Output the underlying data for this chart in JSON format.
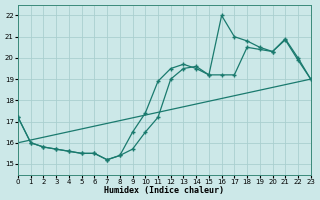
{
  "xlabel": "Humidex (Indice chaleur)",
  "bg_color": "#cce8e8",
  "grid_color": "#aacfcf",
  "line_color": "#1a7a6e",
  "xmin": 0,
  "xmax": 23,
  "ymin": 14.5,
  "ymax": 22.5,
  "yticks": [
    15,
    16,
    17,
    18,
    19,
    20,
    21,
    22
  ],
  "xticks": [
    0,
    1,
    2,
    3,
    4,
    5,
    6,
    7,
    8,
    9,
    10,
    11,
    12,
    13,
    14,
    15,
    16,
    17,
    18,
    19,
    20,
    21,
    22,
    23
  ],
  "line_trend": {
    "x": [
      0,
      23
    ],
    "y": [
      16.0,
      19.0
    ]
  },
  "line_smooth": {
    "x": [
      0,
      1,
      2,
      3,
      4,
      5,
      6,
      7,
      8,
      9,
      10,
      11,
      12,
      13,
      14,
      15,
      16,
      17,
      18,
      19,
      20,
      21,
      22,
      23
    ],
    "y": [
      17.2,
      16.0,
      15.8,
      15.7,
      15.6,
      15.5,
      15.5,
      15.2,
      15.4,
      15.7,
      16.5,
      17.2,
      19.0,
      19.5,
      19.6,
      19.2,
      19.2,
      19.2,
      20.5,
      20.4,
      20.3,
      20.85,
      19.9,
      19.0
    ]
  },
  "line_spike": {
    "x": [
      0,
      1,
      2,
      3,
      4,
      5,
      6,
      7,
      8,
      9,
      10,
      11,
      12,
      13,
      14,
      15,
      16,
      17,
      18,
      19,
      20,
      21,
      22,
      23
    ],
    "y": [
      17.2,
      16.0,
      15.8,
      15.7,
      15.6,
      15.5,
      15.5,
      15.2,
      15.4,
      16.5,
      17.4,
      18.9,
      19.5,
      19.7,
      19.5,
      19.2,
      22.0,
      21.0,
      20.8,
      20.5,
      20.3,
      20.9,
      20.0,
      19.0
    ]
  }
}
